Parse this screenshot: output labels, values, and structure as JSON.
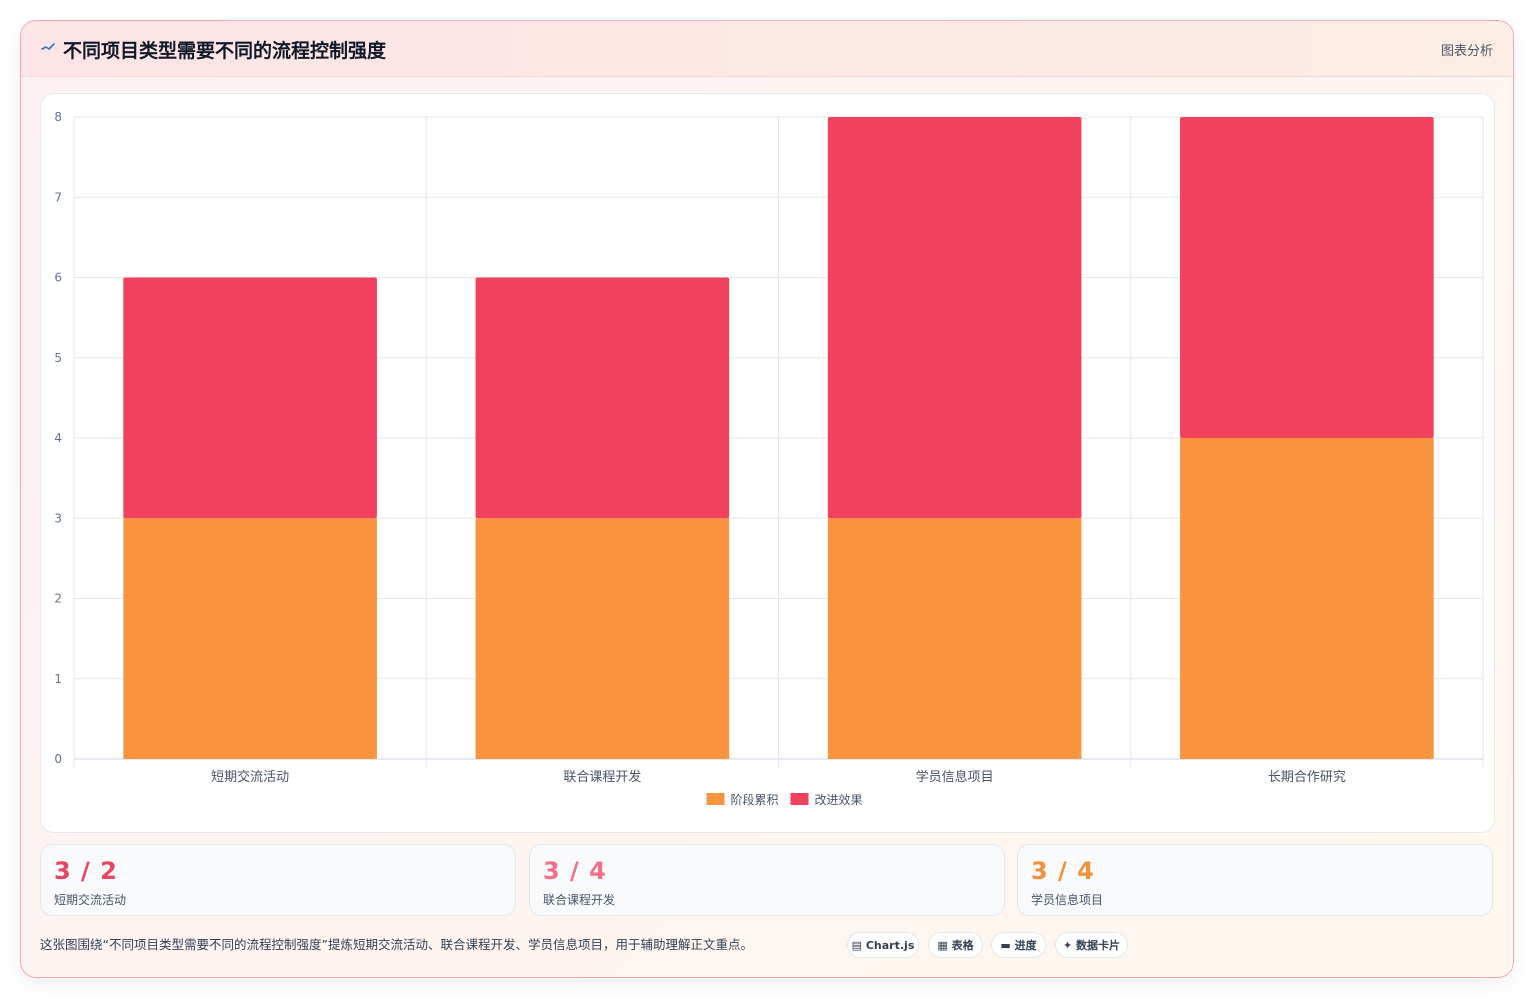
{
  "header": {
    "title": "不同项目类型需要不同的流程控制强度",
    "action": "图表分析",
    "icon": "sparkline-icon"
  },
  "chart_data": {
    "type": "bar",
    "stacked": true,
    "categories": [
      "短期交流活动",
      "联合课程开发",
      "学员信息项目",
      "长期合作研究"
    ],
    "series": [
      {
        "name": "阶段累积",
        "values": [
          3,
          3,
          3,
          4
        ],
        "color": "#fa943e"
      },
      {
        "name": "改进效果",
        "values": [
          3,
          3,
          5,
          4
        ],
        "color": "#f2405f"
      }
    ],
    "ylim": [
      0,
      8
    ],
    "yticks": [
      "0",
      "1",
      "2",
      "3",
      "4",
      "5",
      "6",
      "7",
      "8"
    ],
    "grid": true,
    "legend": "bottom"
  },
  "stats": [
    {
      "value": "3 / 2",
      "label": "短期交流活动",
      "color": "#e8455f"
    },
    {
      "value": "3 / 4",
      "label": "联合课程开发",
      "color": "#f2708a"
    },
    {
      "value": "3 / 4",
      "label": "学员信息项目",
      "color": "#f0913b"
    }
  ],
  "caption": "这张图围绕“不同项目类型需要不同的流程控制强度”提炼短期交流活动、联合课程开发、学员信息项目，用于辅助理解正文重点。",
  "tags": [
    {
      "label": "Chart.js",
      "icon": "chart-icon",
      "glyph": "▤"
    },
    {
      "label": "表格",
      "icon": "table-icon",
      "glyph": "▦"
    },
    {
      "label": "进度",
      "icon": "progress-icon",
      "glyph": "▬"
    },
    {
      "label": "数据卡片",
      "icon": "sparkle-icon",
      "glyph": "✦"
    }
  ]
}
